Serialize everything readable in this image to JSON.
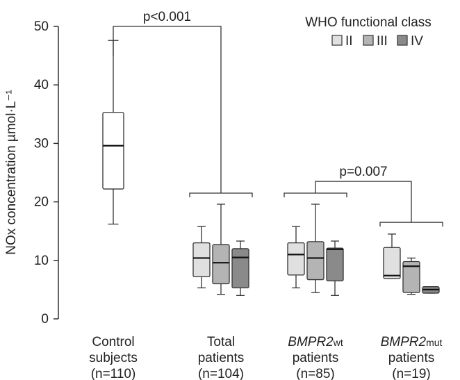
{
  "chart_data": {
    "type": "box",
    "title": "",
    "xlabel": "",
    "ylabel": "NOx concentration µmol·L⁻¹",
    "ylim": [
      0,
      50
    ],
    "yticks": [
      "0",
      "10",
      "20",
      "30",
      "40",
      "50"
    ],
    "grid": false,
    "legend": {
      "title": "WHO functional class",
      "placement": "top-right",
      "items": [
        {
          "name": "II",
          "color": "#e0e0e0"
        },
        {
          "name": "III",
          "color": "#b4b4b4"
        },
        {
          "name": "IV",
          "color": "#8a8a8a"
        }
      ]
    },
    "groups": [
      {
        "id": "control",
        "line1": "Control",
        "line1_italic": "",
        "line1_sub": "",
        "line2": "subjects",
        "line3": "(n=110)"
      },
      {
        "id": "total",
        "line1": "Total",
        "line1_italic": "",
        "line1_sub": "",
        "line2": "patients",
        "line3": "(n=104)"
      },
      {
        "id": "wt",
        "line1": "",
        "line1_italic": "BMPR2",
        "line1_sub": "wt",
        "line2": "patients",
        "line3": "(n=85)"
      },
      {
        "id": "mut",
        "line1": "",
        "line1_italic": "BMPR2",
        "line1_sub": "mut",
        "line2": "patients",
        "line3": "(n=19)"
      }
    ],
    "boxes": [
      {
        "group": "control",
        "class": "",
        "color": "#ffffff",
        "min": 16.2,
        "q1": 22.2,
        "median": 29.6,
        "q3": 35.3,
        "max": 47.6
      },
      {
        "group": "total",
        "class": "II",
        "color": "#e0e0e0",
        "min": 5.3,
        "q1": 7.2,
        "median": 10.4,
        "q3": 13.0,
        "max": 15.8
      },
      {
        "group": "total",
        "class": "III",
        "color": "#b4b4b4",
        "min": 4.2,
        "q1": 6.0,
        "median": 9.6,
        "q3": 12.7,
        "max": 19.6
      },
      {
        "group": "total",
        "class": "IV",
        "color": "#8a8a8a",
        "min": 4.0,
        "q1": 5.3,
        "median": 10.5,
        "q3": 12.0,
        "max": 13.3
      },
      {
        "group": "wt",
        "class": "II",
        "color": "#e0e0e0",
        "min": 5.3,
        "q1": 7.5,
        "median": 11.0,
        "q3": 13.0,
        "max": 15.8
      },
      {
        "group": "wt",
        "class": "III",
        "color": "#b4b4b4",
        "min": 4.5,
        "q1": 6.7,
        "median": 10.4,
        "q3": 13.2,
        "max": 19.6
      },
      {
        "group": "wt",
        "class": "IV",
        "color": "#8a8a8a",
        "min": 4.0,
        "q1": 6.5,
        "median": 11.9,
        "q3": 12.1,
        "max": 13.3
      },
      {
        "group": "mut",
        "class": "II",
        "color": "#e0e0e0",
        "min": 6.9,
        "q1": 6.9,
        "median": 7.4,
        "q3": 12.2,
        "max": 14.5
      },
      {
        "group": "mut",
        "class": "III",
        "color": "#b4b4b4",
        "min": 4.2,
        "q1": 4.5,
        "median": 9.0,
        "q3": 9.8,
        "max": 10.4
      },
      {
        "group": "mut",
        "class": "IV",
        "color": "#8a8a8a",
        "min": 4.4,
        "q1": 4.4,
        "median": 5.0,
        "q3": 5.5,
        "max": 5.5
      }
    ],
    "annotations": [
      {
        "label": "p<0.001",
        "from_group": "control",
        "to_group": "total",
        "y": 50.0
      },
      {
        "label": "p=0.007",
        "from_group": "wt",
        "to_group": "mut",
        "y": 23.5
      }
    ]
  }
}
